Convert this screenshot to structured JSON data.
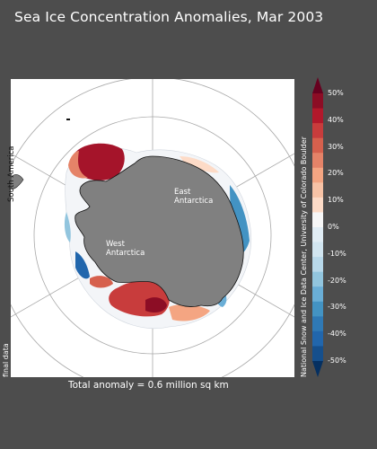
{
  "title": "Sea Ice Concentration Anomalies, Mar 2003",
  "map": {
    "region_labels": {
      "east": [
        "East",
        "Antarctica"
      ],
      "west": [
        "West",
        "Antarctica"
      ],
      "south_america": "South America"
    },
    "status_label": "final data",
    "total_anomaly": "Total anomaly = 0.6 million sq km",
    "credit": "National Snow and Ice Data Center, University of Colorado Boulder",
    "land_color": "#808080",
    "ocean_color": "#ffffff",
    "grid_color": "#a8a8a8"
  },
  "colorbar": {
    "ticks": [
      "50%",
      "40%",
      "30%",
      "20%",
      "10%",
      "0%",
      "-10%",
      "-20%",
      "-30%",
      "-40%",
      "-50%"
    ],
    "colors_top_to_bottom": [
      "#8c0d25",
      "#b2182b",
      "#c83c3c",
      "#d6604d",
      "#e58368",
      "#f4a582",
      "#f8c3a6",
      "#fddbc7",
      "#f7f7f7",
      "#e1edf5",
      "#d1e5f0",
      "#b8d8ea",
      "#92c5de",
      "#6aaed6",
      "#4393c3",
      "#2f79b5",
      "#2166ac",
      "#154f8c"
    ],
    "max_arrow_color": "#67001f",
    "min_arrow_color": "#053061"
  }
}
